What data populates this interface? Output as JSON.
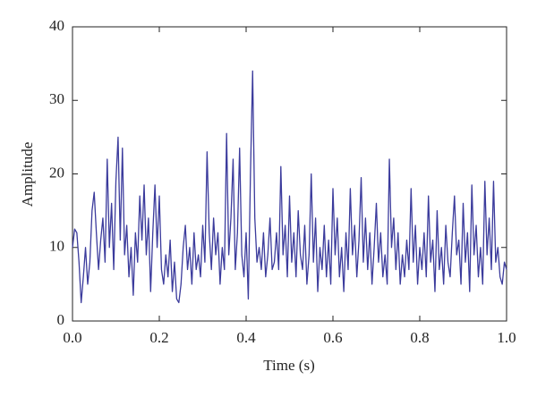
{
  "chart_data": {
    "type": "line",
    "xlabel": "Time (s)",
    "ylabel": "Amplitude",
    "xlim": [
      0,
      1
    ],
    "ylim": [
      0,
      40
    ],
    "xticks": [
      {
        "value": 0,
        "label": "0.0"
      },
      0.2,
      0.4,
      0.6,
      0.8,
      {
        "value": 1,
        "label": "1.0"
      }
    ],
    "yticks": [
      0,
      10,
      20,
      30,
      40
    ],
    "grid": false,
    "series": [
      {
        "color": "#3b3b9c",
        "x": [
          0,
          0.005,
          0.01,
          0.015,
          0.02,
          0.025,
          0.03,
          0.035,
          0.04,
          0.045,
          0.05,
          0.055,
          0.06,
          0.065,
          0.07,
          0.075,
          0.08,
          0.085,
          0.09,
          0.095,
          0.1,
          0.105,
          0.11,
          0.115,
          0.12,
          0.125,
          0.13,
          0.135,
          0.14,
          0.145,
          0.15,
          0.155,
          0.16,
          0.165,
          0.17,
          0.175,
          0.18,
          0.185,
          0.19,
          0.195,
          0.2,
          0.205,
          0.21,
          0.215,
          0.22,
          0.225,
          0.23,
          0.235,
          0.24,
          0.245,
          0.25,
          0.255,
          0.26,
          0.265,
          0.27,
          0.275,
          0.28,
          0.285,
          0.29,
          0.295,
          0.3,
          0.305,
          0.31,
          0.315,
          0.32,
          0.325,
          0.33,
          0.335,
          0.34,
          0.345,
          0.35,
          0.355,
          0.36,
          0.365,
          0.37,
          0.375,
          0.38,
          0.385,
          0.39,
          0.395,
          0.4,
          0.405,
          0.41,
          0.415,
          0.42,
          0.425,
          0.43,
          0.435,
          0.44,
          0.445,
          0.45,
          0.455,
          0.46,
          0.465,
          0.47,
          0.475,
          0.48,
          0.485,
          0.49,
          0.495,
          0.5,
          0.505,
          0.51,
          0.515,
          0.52,
          0.525,
          0.53,
          0.535,
          0.54,
          0.545,
          0.55,
          0.555,
          0.56,
          0.565,
          0.57,
          0.575,
          0.58,
          0.585,
          0.59,
          0.595,
          0.6,
          0.605,
          0.61,
          0.615,
          0.62,
          0.625,
          0.63,
          0.635,
          0.64,
          0.645,
          0.65,
          0.655,
          0.66,
          0.665,
          0.67,
          0.675,
          0.68,
          0.685,
          0.69,
          0.695,
          0.7,
          0.705,
          0.71,
          0.715,
          0.72,
          0.725,
          0.73,
          0.735,
          0.74,
          0.745,
          0.75,
          0.755,
          0.76,
          0.765,
          0.77,
          0.775,
          0.78,
          0.785,
          0.79,
          0.795,
          0.8,
          0.805,
          0.81,
          0.815,
          0.82,
          0.825,
          0.83,
          0.835,
          0.84,
          0.845,
          0.85,
          0.855,
          0.86,
          0.865,
          0.87,
          0.875,
          0.88,
          0.885,
          0.89,
          0.895,
          0.9,
          0.905,
          0.91,
          0.915,
          0.92,
          0.925,
          0.93,
          0.935,
          0.94,
          0.945,
          0.95,
          0.955,
          0.96,
          0.965,
          0.97,
          0.975,
          0.98,
          0.985,
          0.99,
          0.995,
          1
        ],
        "values": [
          10,
          12.5,
          12,
          8,
          2.5,
          6,
          10,
          5,
          8,
          15,
          17.5,
          12,
          7,
          11,
          14,
          8,
          22,
          10,
          16,
          7,
          19,
          25,
          11,
          23.5,
          9,
          13,
          6,
          10,
          3.5,
          12,
          8,
          17,
          11,
          18.5,
          9,
          14,
          4,
          12,
          18.5,
          10,
          17,
          7,
          5,
          9,
          6,
          11,
          4,
          8,
          3,
          2.5,
          5,
          10,
          13,
          7,
          10,
          5,
          12,
          7,
          9,
          6,
          13,
          8,
          23,
          12,
          7,
          14,
          9,
          12,
          5,
          10,
          7,
          25.5,
          9,
          14,
          22,
          7,
          12,
          23.5,
          9,
          6,
          12,
          3,
          20,
          34,
          14,
          8,
          10,
          7,
          12,
          6,
          9,
          14,
          7,
          8,
          12,
          7,
          21,
          9,
          13,
          6,
          17,
          8,
          12,
          6,
          15,
          9,
          7,
          13,
          5,
          9,
          20,
          8,
          14,
          4,
          10,
          7,
          13,
          6,
          11,
          5,
          18,
          9,
          14,
          6,
          10,
          4,
          12,
          7,
          18,
          9,
          13,
          6,
          11,
          19.5,
          8,
          14,
          7,
          12,
          5,
          10,
          16,
          8,
          12,
          6,
          9,
          5,
          22,
          10,
          14,
          7,
          12,
          5,
          9,
          6,
          11,
          7,
          18,
          8,
          13,
          5,
          10,
          7,
          12,
          6,
          17,
          8,
          11,
          4,
          15,
          7,
          10,
          5,
          13,
          8,
          6,
          12,
          17,
          9,
          11,
          5,
          16,
          8,
          12,
          4,
          18.5,
          9,
          13,
          6,
          10,
          5,
          19,
          9,
          14,
          7,
          19,
          8,
          10,
          6,
          5,
          8,
          7
        ]
      }
    ]
  }
}
